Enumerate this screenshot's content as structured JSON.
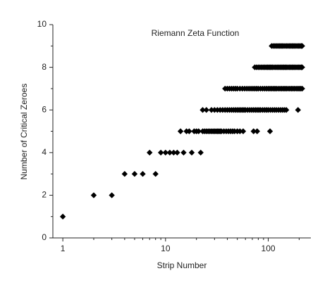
{
  "chart_data": {
    "type": "scatter",
    "title": "Riemann Zeta Function",
    "x_label": "Strip Number",
    "y_label": "Number of Critical Zeroes",
    "log_x": true,
    "color": "#000000",
    "marker": "diamond",
    "xlim": [
      0.8,
      260
    ],
    "ylim": [
      0,
      10
    ],
    "xticks": [
      1,
      10,
      100
    ],
    "yticks": [
      0,
      2,
      4,
      6,
      8,
      10
    ],
    "x": [
      1,
      2,
      3,
      4,
      5,
      6,
      8,
      7,
      9,
      10,
      11,
      12,
      13,
      15,
      18,
      22,
      14,
      16,
      17,
      19,
      20,
      21,
      23,
      24,
      25,
      26,
      27,
      28,
      29,
      30,
      31,
      32,
      33,
      34,
      35,
      37,
      39,
      41,
      43,
      45,
      47,
      50,
      53,
      57,
      72,
      78,
      104,
      23,
      25,
      28,
      30,
      32,
      34,
      36,
      38,
      40,
      42,
      44,
      46,
      48,
      50,
      52,
      54,
      56,
      58,
      60,
      63,
      66,
      69,
      72,
      75,
      78,
      81,
      84,
      88,
      92,
      96,
      100,
      105,
      110,
      115,
      120,
      126,
      132,
      138,
      144,
      150,
      195,
      38,
      40,
      42,
      44,
      46,
      48,
      50,
      53,
      56,
      59,
      62,
      65,
      68,
      71,
      74,
      77,
      80,
      84,
      88,
      92,
      96,
      100,
      104,
      108,
      112,
      116,
      120,
      125,
      130,
      135,
      140,
      145,
      150,
      156,
      162,
      168,
      174,
      180,
      187,
      194,
      200,
      207,
      214,
      74,
      77,
      80,
      83,
      86,
      89,
      92,
      95,
      98,
      101,
      104,
      107,
      110,
      114,
      118,
      122,
      126,
      130,
      134,
      138,
      142,
      146,
      150,
      155,
      160,
      165,
      170,
      175,
      180,
      186,
      192,
      198,
      204,
      210,
      214,
      108,
      112,
      116,
      120,
      124,
      128,
      132,
      136,
      140,
      145,
      150,
      155,
      160,
      165,
      170,
      175,
      180,
      186,
      192,
      198,
      204,
      210,
      214
    ],
    "values": [
      1,
      2,
      2,
      3,
      3,
      3,
      3,
      4,
      4,
      4,
      4,
      4,
      4,
      4,
      4,
      4,
      5,
      5,
      5,
      5,
      5,
      5,
      5,
      5,
      5,
      5,
      5,
      5,
      5,
      5,
      5,
      5,
      5,
      5,
      5,
      5,
      5,
      5,
      5,
      5,
      5,
      5,
      5,
      5,
      5,
      5,
      5,
      6,
      6,
      6,
      6,
      6,
      6,
      6,
      6,
      6,
      6,
      6,
      6,
      6,
      6,
      6,
      6,
      6,
      6,
      6,
      6,
      6,
      6,
      6,
      6,
      6,
      6,
      6,
      6,
      6,
      6,
      6,
      6,
      6,
      6,
      6,
      6,
      6,
      6,
      6,
      6,
      6,
      7,
      7,
      7,
      7,
      7,
      7,
      7,
      7,
      7,
      7,
      7,
      7,
      7,
      7,
      7,
      7,
      7,
      7,
      7,
      7,
      7,
      7,
      7,
      7,
      7,
      7,
      7,
      7,
      7,
      7,
      7,
      7,
      7,
      7,
      7,
      7,
      7,
      7,
      7,
      7,
      7,
      7,
      7,
      8,
      8,
      8,
      8,
      8,
      8,
      8,
      8,
      8,
      8,
      8,
      8,
      8,
      8,
      8,
      8,
      8,
      8,
      8,
      8,
      8,
      8,
      8,
      8,
      8,
      8,
      8,
      8,
      8,
      8,
      8,
      8,
      8,
      8,
      8,
      9,
      9,
      9,
      9,
      9,
      9,
      9,
      9,
      9,
      9,
      9,
      9,
      9,
      9,
      9,
      9,
      9,
      9,
      9,
      9,
      9,
      9,
      9
    ]
  }
}
